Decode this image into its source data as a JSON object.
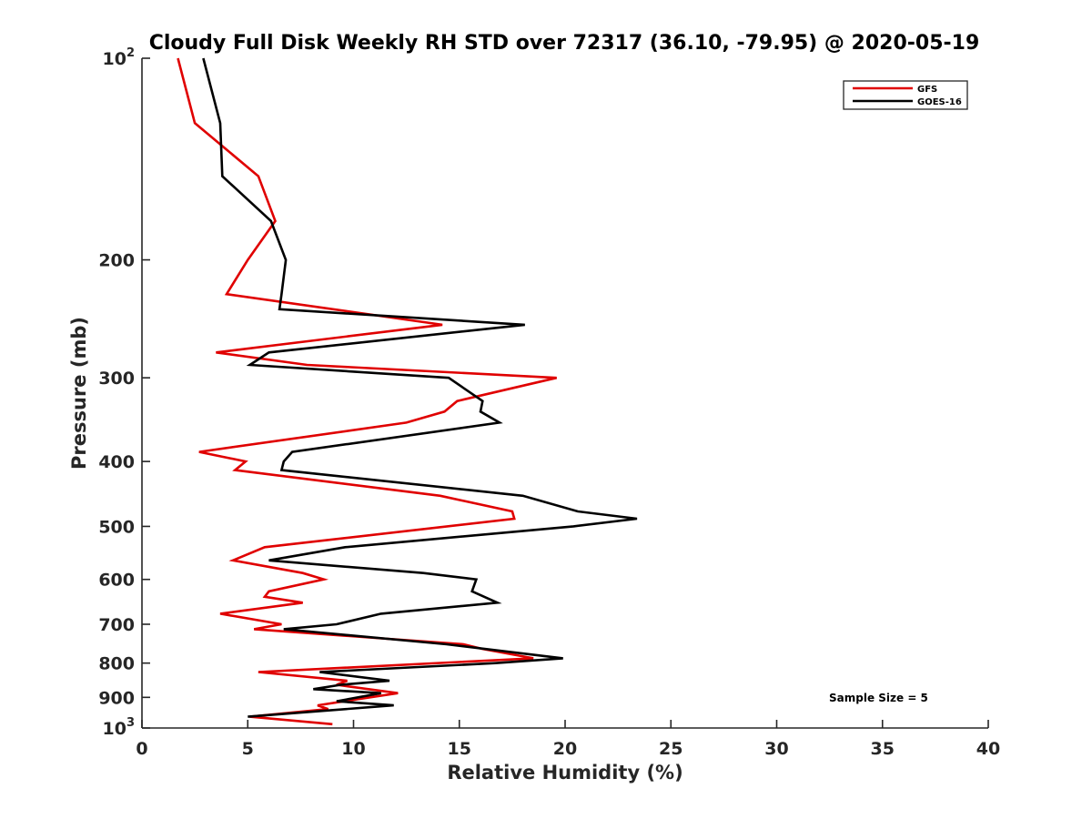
{
  "chart_data": {
    "type": "line",
    "title": "Cloudy Full Disk Weekly RH STD over 72317 (36.10, -79.95) @ 2020-05-19",
    "xlabel": "Relative Humidity (%)",
    "ylabel": "Pressure (mb)",
    "xlim": [
      0,
      40
    ],
    "ylim": [
      100,
      1000
    ],
    "y_scale": "log",
    "y_reversed": true,
    "grid": false,
    "legend_position": "top-right",
    "x_ticks": [
      0,
      5,
      10,
      15,
      20,
      25,
      30,
      35,
      40
    ],
    "x_tick_labels": [
      "0",
      "5",
      "10",
      "15",
      "20",
      "25",
      "30",
      "35",
      "40"
    ],
    "y_ticks": [
      100,
      200,
      300,
      400,
      500,
      600,
      700,
      800,
      900,
      1000
    ],
    "y_tick_labels": [
      {
        "base": "10",
        "exp": "2"
      },
      {
        "base": "200",
        "exp": ""
      },
      {
        "base": "300",
        "exp": ""
      },
      {
        "base": "400",
        "exp": ""
      },
      {
        "base": "500",
        "exp": ""
      },
      {
        "base": "600",
        "exp": ""
      },
      {
        "base": "700",
        "exp": ""
      },
      {
        "base": "800",
        "exp": ""
      },
      {
        "base": "900",
        "exp": ""
      },
      {
        "base": "10",
        "exp": "3"
      }
    ],
    "annotation": "Sample Size = 5",
    "series": [
      {
        "name": "GFS",
        "color": "#e00000",
        "points": [
          [
            1.7,
            100
          ],
          [
            2.5,
            125
          ],
          [
            5.5,
            150
          ],
          [
            6.3,
            175
          ],
          [
            5.0,
            200
          ],
          [
            4.0,
            225
          ],
          [
            14.2,
            250
          ],
          [
            3.5,
            275
          ],
          [
            7.8,
            287
          ],
          [
            19.6,
            300
          ],
          [
            14.9,
            325
          ],
          [
            14.3,
            337
          ],
          [
            12.5,
            350
          ],
          [
            2.7,
            387
          ],
          [
            4.9,
            400
          ],
          [
            4.4,
            412
          ],
          [
            14.1,
            450
          ],
          [
            17.5,
            475
          ],
          [
            17.6,
            487
          ],
          [
            5.8,
            537
          ],
          [
            4.3,
            562
          ],
          [
            7.6,
            587
          ],
          [
            8.6,
            600
          ],
          [
            6.0,
            625
          ],
          [
            5.8,
            637
          ],
          [
            7.6,
            650
          ],
          [
            3.7,
            675
          ],
          [
            6.6,
            700
          ],
          [
            5.3,
            712
          ],
          [
            15.2,
            750
          ],
          [
            16.1,
            762
          ],
          [
            18.5,
            787
          ],
          [
            5.5,
            825
          ],
          [
            9.7,
            850
          ],
          [
            9.2,
            862
          ],
          [
            12.1,
            887
          ],
          [
            8.3,
            925
          ],
          [
            8.8,
            937
          ],
          [
            5.1,
            962
          ],
          [
            9.0,
            987
          ]
        ]
      },
      {
        "name": "GOES-16",
        "color": "#000000",
        "points": [
          [
            2.9,
            100
          ],
          [
            3.7,
            125
          ],
          [
            3.8,
            150
          ],
          [
            6.1,
            175
          ],
          [
            6.8,
            200
          ],
          [
            6.6,
            225
          ],
          [
            6.5,
            237
          ],
          [
            18.1,
            250
          ],
          [
            6.0,
            275
          ],
          [
            5.1,
            287
          ],
          [
            14.5,
            300
          ],
          [
            16.1,
            325
          ],
          [
            16.0,
            337
          ],
          [
            16.9,
            350
          ],
          [
            7.1,
            387
          ],
          [
            6.7,
            400
          ],
          [
            6.6,
            412
          ],
          [
            18.0,
            450
          ],
          [
            20.6,
            475
          ],
          [
            23.4,
            487
          ],
          [
            20.4,
            500
          ],
          [
            9.6,
            537
          ],
          [
            6.0,
            562
          ],
          [
            13.3,
            587
          ],
          [
            15.8,
            600
          ],
          [
            15.6,
            625
          ],
          [
            16.8,
            650
          ],
          [
            11.3,
            675
          ],
          [
            9.2,
            700
          ],
          [
            6.7,
            712
          ],
          [
            14.4,
            750
          ],
          [
            19.9,
            787
          ],
          [
            16.7,
            800
          ],
          [
            8.4,
            825
          ],
          [
            11.7,
            850
          ],
          [
            9.4,
            862
          ],
          [
            8.1,
            875
          ],
          [
            11.3,
            887
          ],
          [
            9.2,
            912
          ],
          [
            11.9,
            925
          ],
          [
            5.0,
            962
          ]
        ]
      }
    ]
  }
}
